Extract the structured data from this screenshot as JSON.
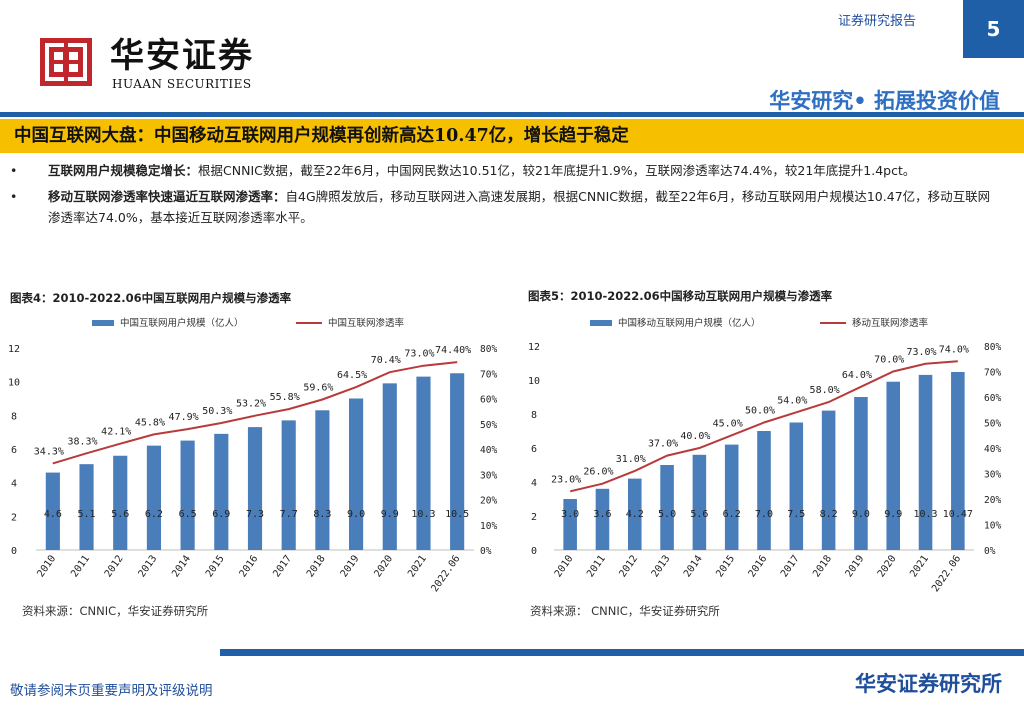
{
  "header": {
    "report_type": "证券研究报告",
    "page_number": "5",
    "logo_cn": "华安证券",
    "logo_en": "HUAAN SECURITIES",
    "slogan": "华安研究• 拓展投资价值"
  },
  "title": "中国互联网大盘：中国移动互联网用户规模再创新高达10.47亿，增长趋于稳定",
  "bullets": [
    {
      "marker": "•",
      "lead": "互联网用户规模稳定增长：",
      "text": "根据CNNIC数据，截至22年6月，中国网民数达10.51亿，较21年底提升1.9%，互联网渗透率达74.4%，较21年底提升1.4pct。"
    },
    {
      "marker": "•",
      "lead": "移动互联网渗透率快速逼近互联网渗透率：",
      "text": "自4G牌照发放后，移动互联网进入高速发展期，根据CNNIC数据，截至22年6月，移动互联网用户规模达10.47亿，移动互联网渗透率达74.0%，基本接近互联网渗透率水平。"
    }
  ],
  "chart_data": [
    {
      "type": "bar",
      "title": "图表4：2010-2022.06中国互联网用户规模与渗透率",
      "categories": [
        "2010",
        "2011",
        "2012",
        "2013",
        "2014",
        "2015",
        "2016",
        "2017",
        "2018",
        "2019",
        "2020",
        "2021",
        "2022.06"
      ],
      "series": [
        {
          "name": "中国互联网用户规模（亿人）",
          "type": "bar",
          "axis": "left",
          "color": "#4a7ebb",
          "values": [
            4.6,
            5.1,
            5.6,
            6.2,
            6.5,
            6.9,
            7.3,
            7.7,
            8.3,
            9.0,
            9.9,
            10.3,
            10.5
          ],
          "labels": [
            "4.6",
            "5.1",
            "5.6",
            "6.2",
            "6.5",
            "6.9",
            "7.3",
            "7.7",
            "8.3",
            "9.0",
            "9.9",
            "10.3",
            "10.5"
          ]
        },
        {
          "name": "中国互联网渗透率",
          "type": "line",
          "axis": "right",
          "color": "#b83a3a",
          "values": [
            34.3,
            38.3,
            42.1,
            45.8,
            47.9,
            50.3,
            53.2,
            55.8,
            59.6,
            64.5,
            70.4,
            73.0,
            74.4
          ],
          "labels": [
            "34.3%",
            "38.3%",
            "42.1%",
            "45.8%",
            "47.9%",
            "50.3%",
            "53.2%",
            "55.8%",
            "59.6%",
            "64.5%",
            "70.4%",
            "73.0%",
            "74.40%"
          ]
        }
      ],
      "ylim": [
        0,
        12
      ],
      "y_ticks": [
        "0",
        "2",
        "4",
        "6",
        "8",
        "10",
        "12"
      ],
      "y2lim": [
        0,
        80
      ],
      "y2_ticks": [
        "0%",
        "10%",
        "20%",
        "30%",
        "40%",
        "50%",
        "60%",
        "70%",
        "80%"
      ],
      "legend": "top",
      "grid": false,
      "source": "资料来源：CNNIC，华安证券研究所"
    },
    {
      "type": "bar",
      "title": "图表5：2010-2022.06中国移动互联网用户规模与渗透率",
      "categories": [
        "2010",
        "2011",
        "2012",
        "2013",
        "2014",
        "2015",
        "2016",
        "2017",
        "2018",
        "2019",
        "2020",
        "2021",
        "2022.06"
      ],
      "series": [
        {
          "name": "中国移动互联网用户规模（亿人）",
          "type": "bar",
          "axis": "left",
          "color": "#4a7ebb",
          "values": [
            3.0,
            3.6,
            4.2,
            5.0,
            5.6,
            6.2,
            7.0,
            7.5,
            8.2,
            9.0,
            9.9,
            10.3,
            10.47
          ],
          "labels": [
            "3.0",
            "3.6",
            "4.2",
            "5.0",
            "5.6",
            "6.2",
            "7.0",
            "7.5",
            "8.2",
            "9.0",
            "9.9",
            "10.3",
            "10.47"
          ]
        },
        {
          "name": "移动互联网渗透率",
          "type": "line",
          "axis": "right",
          "color": "#b83a3a",
          "values": [
            23.0,
            26.0,
            31.0,
            37.0,
            40.0,
            45.0,
            50.0,
            54.0,
            58.0,
            64.0,
            70.0,
            73.0,
            74.0
          ],
          "labels": [
            "23.0%",
            "26.0%",
            "31.0%",
            "37.0%",
            "40.0%",
            "45.0%",
            "50.0%",
            "54.0%",
            "58.0%",
            "64.0%",
            "70.0%",
            "73.0%",
            "74.0%"
          ]
        }
      ],
      "ylim": [
        0,
        12
      ],
      "y_ticks": [
        "0",
        "2",
        "4",
        "6",
        "8",
        "10",
        "12"
      ],
      "y2lim": [
        0,
        80
      ],
      "y2_ticks": [
        "0%",
        "10%",
        "20%",
        "30%",
        "40%",
        "50%",
        "60%",
        "70%",
        "80%"
      ],
      "legend": "top",
      "grid": false,
      "source": "资料来源： CNNIC，华安证券研究所"
    }
  ],
  "footer": {
    "note": "敬请参阅末页重要声明及评级说明",
    "brand": "华安证券研究所"
  },
  "colors": {
    "brand_blue": "#1f5fa8",
    "title_yellow": "#f6c000",
    "logo_red": "#c0262c",
    "bar_blue": "#4a7ebb",
    "line_red": "#b83a3a"
  }
}
